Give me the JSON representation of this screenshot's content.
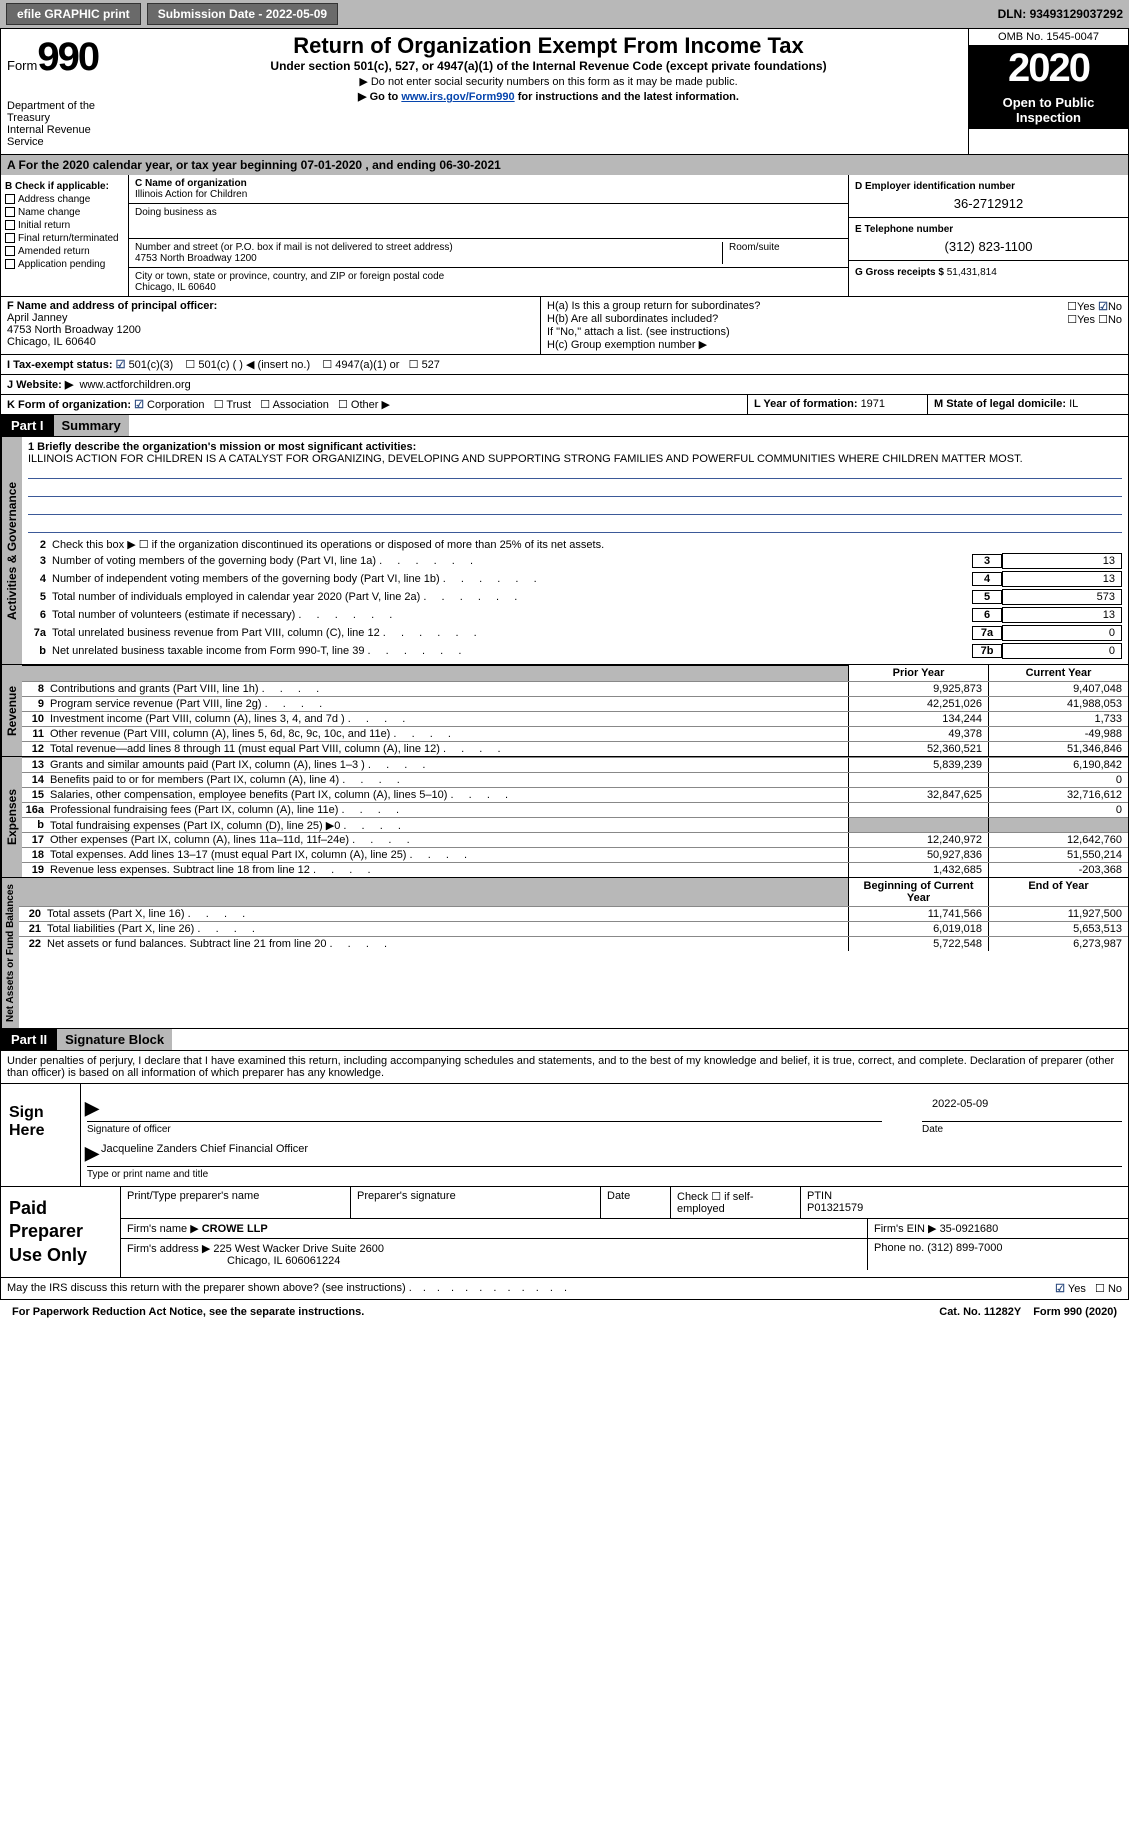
{
  "topbar": {
    "efile": "efile GRAPHIC print",
    "sub_label": "Submission Date - ",
    "sub_date": "2022-05-09",
    "dln_label": "DLN: ",
    "dln": "93493129037292"
  },
  "header": {
    "form_word": "Form",
    "form_num": "990",
    "dept": "Department of the Treasury\nInternal Revenue Service",
    "title": "Return of Organization Exempt From Income Tax",
    "subtitle": "Under section 501(c), 527, or 4947(a)(1) of the Internal Revenue Code (except private foundations)",
    "note1": "▶ Do not enter social security numbers on this form as it may be made public.",
    "note2_pre": "▶ Go to ",
    "note2_link": "www.irs.gov/Form990",
    "note2_post": " for instructions and the latest information.",
    "omb": "OMB No. 1545-0047",
    "year": "2020",
    "open": "Open to Public Inspection"
  },
  "period": {
    "a_label": "A For the 2020 calendar year, or tax year beginning ",
    "begin": "07-01-2020",
    "mid": " , and ending ",
    "end": "06-30-2021"
  },
  "boxB": {
    "title": "B Check if applicable:",
    "items": [
      "Address change",
      "Name change",
      "Initial return",
      "Final return/terminated",
      "Amended return",
      "Application pending"
    ]
  },
  "boxC": {
    "name_label": "C Name of organization",
    "name": "Illinois Action for Children",
    "dba_label": "Doing business as",
    "addr_label": "Number and street (or P.O. box if mail is not delivered to street address)",
    "room_label": "Room/suite",
    "addr": "4753 North Broadway 1200",
    "city_label": "City or town, state or province, country, and ZIP or foreign postal code",
    "city": "Chicago, IL  60640"
  },
  "boxD": {
    "ein_label": "D Employer identification number",
    "ein": "36-2712912",
    "phone_label": "E Telephone number",
    "phone": "(312) 823-1100",
    "gross_label": "G Gross receipts $ ",
    "gross": "51,431,814"
  },
  "boxF": {
    "label": "F Name and address of principal officer:",
    "name": "April Janney",
    "addr1": "4753 North Broadway 1200",
    "addr2": "Chicago, IL  60640"
  },
  "boxH": {
    "a": "H(a)  Is this a group return for subordinates?",
    "b": "H(b)  Are all subordinates included?",
    "b_note": "If \"No,\" attach a list. (see instructions)",
    "c": "H(c)  Group exemption number ▶",
    "yes": "Yes",
    "no": "No"
  },
  "boxI": {
    "label": "I  Tax-exempt status:",
    "opts": [
      "501(c)(3)",
      "501(c) (  ) ◀ (insert no.)",
      "4947(a)(1) or",
      "527"
    ]
  },
  "boxJ": {
    "label": "J  Website: ▶",
    "url": "www.actforchildren.org"
  },
  "boxK": {
    "label": "K Form of organization:",
    "opts": [
      "Corporation",
      "Trust",
      "Association",
      "Other ▶"
    ]
  },
  "boxL": {
    "label": "L Year of formation: ",
    "val": "1971"
  },
  "boxM": {
    "label": "M State of legal domicile: ",
    "val": "IL"
  },
  "parts": {
    "p1": "Part I",
    "p1_title": "Summary",
    "p2": "Part II",
    "p2_title": "Signature Block"
  },
  "summary": {
    "s1_label": "Activities & Governance",
    "l1": "1  Briefly describe the organization's mission or most significant activities:",
    "mission": "ILLINOIS ACTION FOR CHILDREN IS A CATALYST FOR ORGANIZING, DEVELOPING AND SUPPORTING STRONG FAMILIES AND POWERFUL COMMUNITIES WHERE CHILDREN MATTER MOST.",
    "l2": "Check this box ▶ ☐  if the organization discontinued its operations or disposed of more than 25% of its net assets.",
    "rows1": [
      {
        "n": "3",
        "t": "Number of voting members of the governing body (Part VI, line 1a)",
        "b": "3",
        "v": "13"
      },
      {
        "n": "4",
        "t": "Number of independent voting members of the governing body (Part VI, line 1b)",
        "b": "4",
        "v": "13"
      },
      {
        "n": "5",
        "t": "Total number of individuals employed in calendar year 2020 (Part V, line 2a)",
        "b": "5",
        "v": "573"
      },
      {
        "n": "6",
        "t": "Total number of volunteers (estimate if necessary)",
        "b": "6",
        "v": "13"
      },
      {
        "n": "7a",
        "t": "Total unrelated business revenue from Part VIII, column (C), line 12",
        "b": "7a",
        "v": "0"
      },
      {
        "n": "b",
        "t": "Net unrelated business taxable income from Form 990-T, line 39",
        "b": "7b",
        "v": "0"
      }
    ],
    "s2_label": "Revenue",
    "col_prior": "Prior Year",
    "col_current": "Current Year",
    "rows2": [
      {
        "n": "8",
        "t": "Contributions and grants (Part VIII, line 1h)",
        "p": "9,925,873",
        "c": "9,407,048"
      },
      {
        "n": "9",
        "t": "Program service revenue (Part VIII, line 2g)",
        "p": "42,251,026",
        "c": "41,988,053"
      },
      {
        "n": "10",
        "t": "Investment income (Part VIII, column (A), lines 3, 4, and 7d )",
        "p": "134,244",
        "c": "1,733"
      },
      {
        "n": "11",
        "t": "Other revenue (Part VIII, column (A), lines 5, 6d, 8c, 9c, 10c, and 11e)",
        "p": "49,378",
        "c": "-49,988"
      },
      {
        "n": "12",
        "t": "Total revenue—add lines 8 through 11 (must equal Part VIII, column (A), line 12)",
        "p": "52,360,521",
        "c": "51,346,846"
      }
    ],
    "s3_label": "Expenses",
    "rows3": [
      {
        "n": "13",
        "t": "Grants and similar amounts paid (Part IX, column (A), lines 1–3 )",
        "p": "5,839,239",
        "c": "6,190,842"
      },
      {
        "n": "14",
        "t": "Benefits paid to or for members (Part IX, column (A), line 4)",
        "p": "",
        "c": "0"
      },
      {
        "n": "15",
        "t": "Salaries, other compensation, employee benefits (Part IX, column (A), lines 5–10)",
        "p": "32,847,625",
        "c": "32,716,612"
      },
      {
        "n": "16a",
        "t": "Professional fundraising fees (Part IX, column (A), line 11e)",
        "p": "",
        "c": "0"
      },
      {
        "n": "b",
        "t": "Total fundraising expenses (Part IX, column (D), line 25) ▶0",
        "p": "GRAY",
        "c": "GRAY"
      },
      {
        "n": "17",
        "t": "Other expenses (Part IX, column (A), lines 11a–11d, 11f–24e)",
        "p": "12,240,972",
        "c": "12,642,760"
      },
      {
        "n": "18",
        "t": "Total expenses. Add lines 13–17 (must equal Part IX, column (A), line 25)",
        "p": "50,927,836",
        "c": "51,550,214"
      },
      {
        "n": "19",
        "t": "Revenue less expenses. Subtract line 18 from line 12",
        "p": "1,432,685",
        "c": "-203,368"
      }
    ],
    "s4_label": "Net Assets or Fund Balances",
    "col_begin": "Beginning of Current Year",
    "col_end": "End of Year",
    "rows4": [
      {
        "n": "20",
        "t": "Total assets (Part X, line 16)",
        "p": "11,741,566",
        "c": "11,927,500"
      },
      {
        "n": "21",
        "t": "Total liabilities (Part X, line 26)",
        "p": "6,019,018",
        "c": "5,653,513"
      },
      {
        "n": "22",
        "t": "Net assets or fund balances. Subtract line 21 from line 20",
        "p": "5,722,548",
        "c": "6,273,987"
      }
    ]
  },
  "sig": {
    "intro": "Under penalties of perjury, I declare that I have examined this return, including accompanying schedules and statements, and to the best of my knowledge and belief, it is true, correct, and complete. Declaration of preparer (other than officer) is based on all information of which preparer has any knowledge.",
    "sign_here": "Sign Here",
    "sig_officer": "Signature of officer",
    "date_label": "Date",
    "sig_date": "2022-05-09",
    "name": "Jacqueline Zanders Chief Financial Officer",
    "name_label": "Type or print name and title"
  },
  "prep": {
    "title": "Paid Preparer Use Only",
    "r1": [
      "Print/Type preparer's name",
      "Preparer's signature",
      "Date",
      "Check ☐ if self-employed",
      "PTIN\nP01321579"
    ],
    "firm_label": "Firm's name  ▶ ",
    "firm": "CROWE LLP",
    "ein_label": "Firm's EIN ▶ ",
    "ein": "35-0921680",
    "addr_label": "Firm's address ▶ ",
    "addr1": "225 West Wacker Drive Suite 2600",
    "addr2": "Chicago, IL  606061224",
    "phone_label": "Phone no. ",
    "phone": "(312) 899-7000"
  },
  "footer": {
    "discuss": "May the IRS discuss this return with the preparer shown above? (see instructions)",
    "yes": "Yes",
    "no": "No",
    "paperwork": "For Paperwork Reduction Act Notice, see the separate instructions.",
    "cat": "Cat. No. 11282Y",
    "form": "Form 990 (2020)"
  }
}
